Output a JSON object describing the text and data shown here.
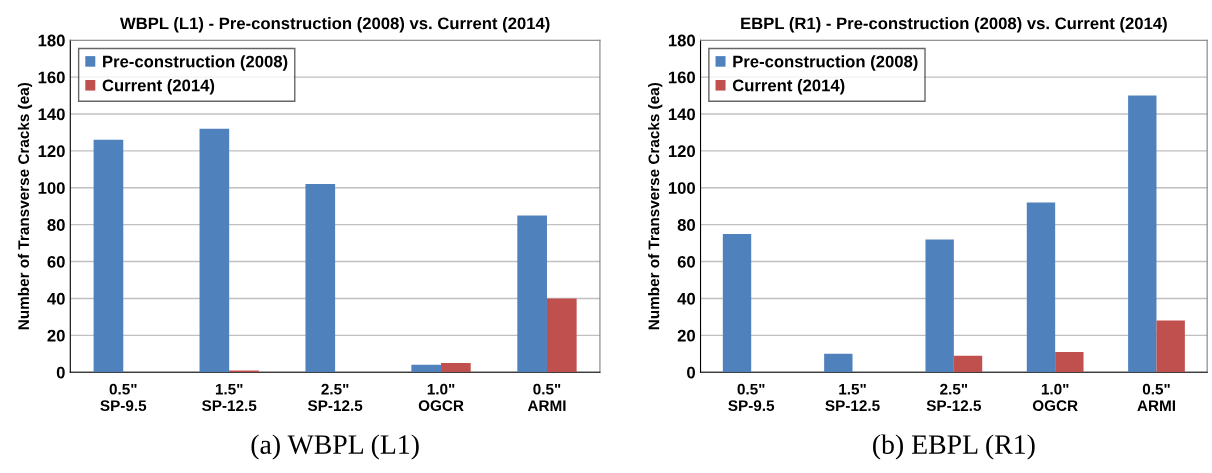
{
  "chart_data": [
    {
      "type": "bar",
      "title": "WBPL (L1) - Pre-construction (2008) vs. Current (2014)",
      "ylabel": "Number of Transverse Cracks (ea)",
      "categories": [
        "0.5\"\nSP-9.5",
        "1.5\"\nSP-12.5",
        "2.5\"\nSP-12.5",
        "1.0\"\nOGCR",
        "0.5\"\nARMI"
      ],
      "series": [
        {
          "name": "Pre-construction (2008)",
          "color": "#4f81bd",
          "values": [
            126,
            132,
            102,
            4,
            85
          ]
        },
        {
          "name": "Current (2014)",
          "color": "#c0504d",
          "values": [
            0,
            1,
            0,
            5,
            40
          ]
        }
      ],
      "ylim": [
        0,
        180
      ],
      "yticks": [
        0,
        20,
        40,
        60,
        80,
        100,
        120,
        140,
        160,
        180
      ],
      "grid": "y",
      "legend": "top left",
      "annotations": [
        "(a) WBPL (L1)"
      ]
    },
    {
      "type": "bar",
      "title": "EBPL (R1) - Pre-construction (2008) vs. Current (2014)",
      "ylabel": "Number of Transverse Cracks (ea)",
      "categories": [
        "0.5\"\nSP-9.5",
        "1.5\"\nSP-12.5",
        "2.5\"\nSP-12.5",
        "1.0\"\nOGCR",
        "0.5\"\nARMI"
      ],
      "series": [
        {
          "name": "Pre-construction (2008)",
          "color": "#4f81bd",
          "values": [
            75,
            10,
            72,
            92,
            150
          ]
        },
        {
          "name": "Current (2014)",
          "color": "#c0504d",
          "values": [
            0,
            0,
            9,
            11,
            28
          ]
        }
      ],
      "ylim": [
        0,
        180
      ],
      "yticks": [
        0,
        20,
        40,
        60,
        80,
        100,
        120,
        140,
        160,
        180
      ],
      "grid": "y",
      "legend": "top left",
      "annotations": [
        "(b) EBPL (R1)"
      ]
    }
  ]
}
